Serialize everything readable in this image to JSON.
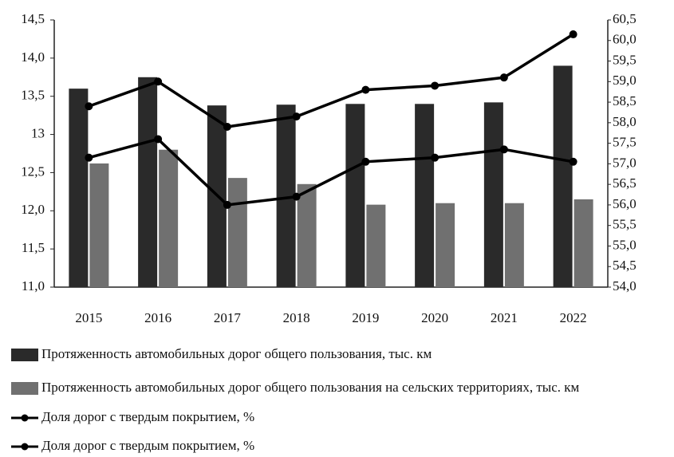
{
  "chart_data": {
    "type": "bar",
    "categories": [
      "2015",
      "2016",
      "2017",
      "2018",
      "2019",
      "2020",
      "2021",
      "2022"
    ],
    "series": [
      {
        "name": "Протяженность автомобильных дорог общего пользования, тыс. км",
        "color": "#2a2a2a",
        "type": "bar",
        "values": [
          13.6,
          13.75,
          13.38,
          13.39,
          13.4,
          13.4,
          13.42,
          13.9
        ]
      },
      {
        "name": "Протяженность автомобильных дорог общего пользования на сельских территориях, тыс. км",
        "color": "#707070",
        "type": "bar",
        "values": [
          12.62,
          12.8,
          12.43,
          12.35,
          12.08,
          12.1,
          12.1,
          12.15
        ]
      },
      {
        "name": "Доля дорог с твердым покрытием, %",
        "color": "#000000",
        "type": "line",
        "axis": "y2",
        "values": [
          58.4,
          59.0,
          57.9,
          58.15,
          58.8,
          58.9,
          59.1,
          60.15
        ]
      },
      {
        "name": "Доля дорог с твердым покрытием, %",
        "color": "#000000",
        "type": "line",
        "axis": "y2",
        "values": [
          57.15,
          57.6,
          56.0,
          56.2,
          57.05,
          57.15,
          57.35,
          57.05
        ]
      }
    ],
    "ylim": [
      11.0,
      14.5
    ],
    "yticks": [
      {
        "value": 11.0,
        "label": "11,0"
      },
      {
        "value": 11.5,
        "label": "11,5"
      },
      {
        "value": 12.0,
        "label": "12,0"
      },
      {
        "value": 12.5,
        "label": "12,5"
      },
      13,
      {
        "value": 13.5,
        "label": "13,5"
      },
      {
        "value": 14.0,
        "label": "14,0"
      },
      {
        "value": 14.5,
        "label": "14,5"
      }
    ],
    "y2lim": [
      54.0,
      60.5
    ],
    "y2ticks": [
      {
        "value": 54.0,
        "label": "54,0"
      },
      {
        "value": 54.5,
        "label": "54,5"
      },
      {
        "value": 55.0,
        "label": "55,0"
      },
      {
        "value": 55.5,
        "label": "55,5"
      },
      {
        "value": 56.0,
        "label": "56,0"
      },
      {
        "value": 56.5,
        "label": "56,5"
      },
      {
        "value": 57.0,
        "label": "57,0"
      },
      {
        "value": 57.5,
        "label": "57,5"
      },
      {
        "value": 58.0,
        "label": "58,0"
      },
      {
        "value": 58.5,
        "label": "58,5"
      },
      {
        "value": 59.0,
        "label": "59,0"
      },
      {
        "value": 59.5,
        "label": "59,5"
      },
      {
        "value": 60.0,
        "label": "60,0"
      },
      {
        "value": 60.5,
        "label": "60,5"
      }
    ],
    "legend": "bottom"
  }
}
